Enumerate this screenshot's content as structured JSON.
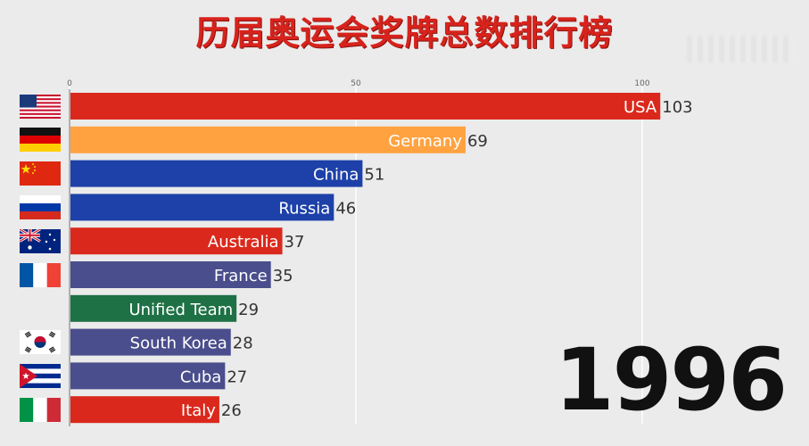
{
  "title": "历届奥运会奖牌总数排行榜",
  "year": "1996",
  "chart_data": {
    "type": "bar",
    "orientation": "horizontal",
    "title": "历届奥运会奖牌总数排行榜",
    "xlim": [
      0,
      105
    ],
    "xticks": [
      0,
      50,
      100
    ],
    "grid": true,
    "categories": [
      "USA",
      "Germany",
      "China",
      "Russia",
      "Australia",
      "France",
      "Unified Team",
      "South Korea",
      "Cuba",
      "Italy"
    ],
    "values": [
      103,
      69,
      51,
      46,
      37,
      35,
      29,
      28,
      27,
      26
    ],
    "colors": [
      "#da291c",
      "#ffa23f",
      "#1d41a8",
      "#1d41a8",
      "#da291c",
      "#4a4e8c",
      "#1e7145",
      "#4a4e8c",
      "#4a4e8c",
      "#da291c"
    ],
    "flags": [
      "us-flag",
      "germany-flag",
      "china-flag",
      "russia-flag",
      "australia-flag",
      "france-flag",
      "",
      "south-korea-flag",
      "cuba-flag",
      "italy-flag"
    ]
  }
}
